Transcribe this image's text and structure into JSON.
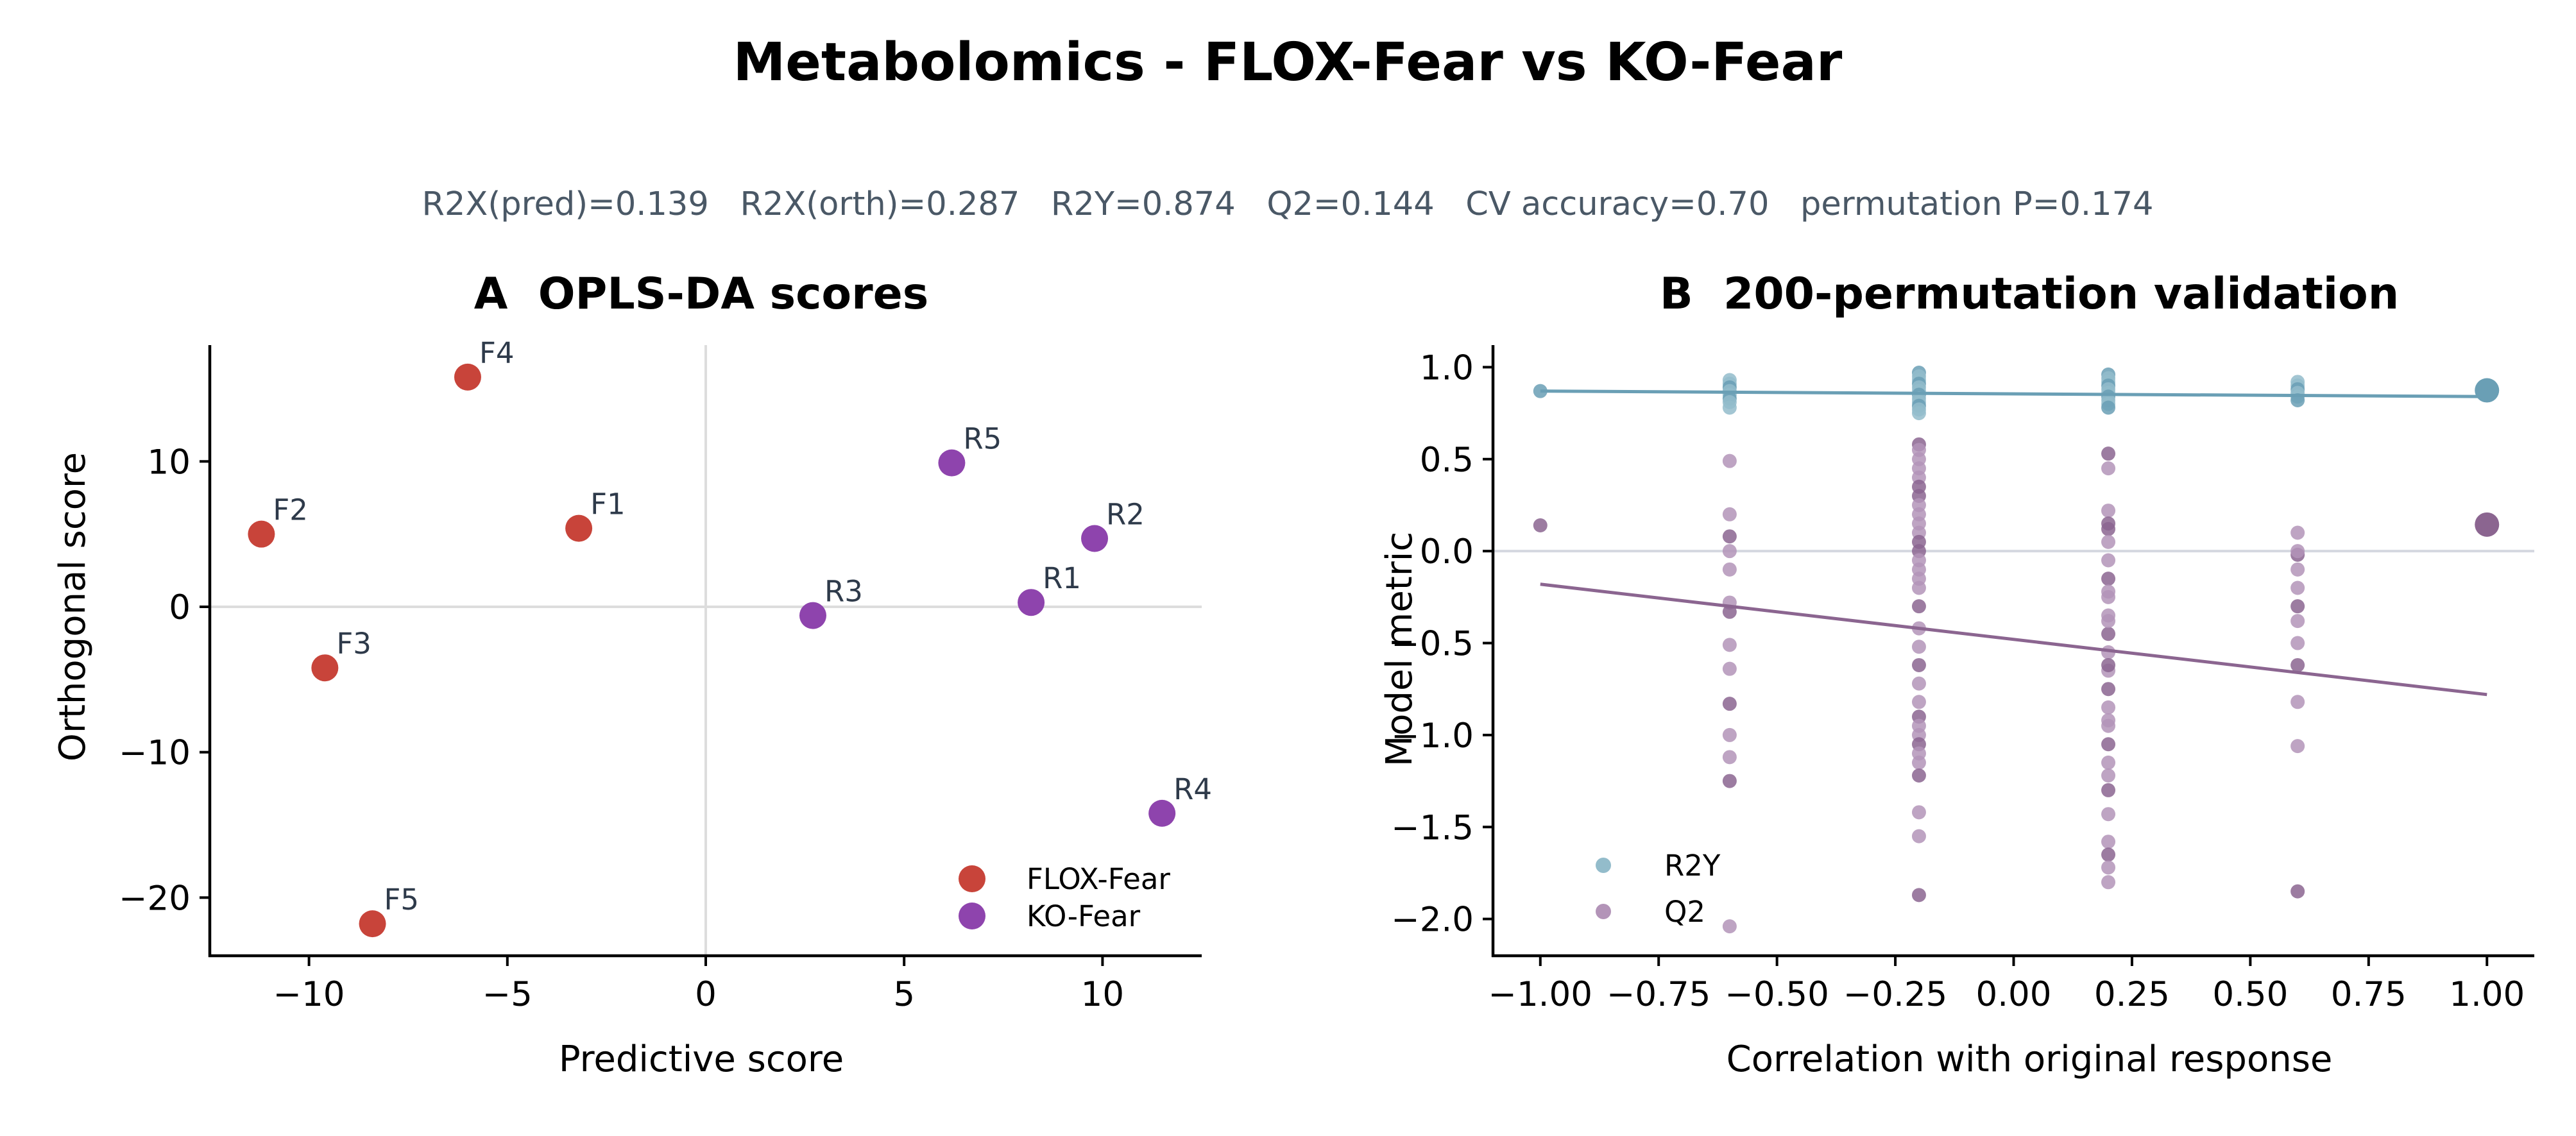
{
  "title": "Metabolomics - FLOX-Fear vs KO-Fear",
  "subtitle": "R2X(pred)=0.139   R2X(orth)=0.287   R2Y=0.874   Q2=0.144   CV accuracy=0.70   permutation P=0.174",
  "chart_data": [
    {
      "type": "scatter",
      "title": "A  OPLS-DA scores",
      "xlabel": "Predictive score",
      "ylabel": "Orthogonal score",
      "xlim": [
        -12.5,
        12.5
      ],
      "ylim": [
        -24,
        18
      ],
      "xticks": [
        -10,
        -5,
        0,
        5,
        10
      ],
      "xtick_labels": [
        "−10",
        "−5",
        "0",
        "5",
        "10"
      ],
      "yticks": [
        -20,
        -10,
        0,
        10
      ],
      "ytick_labels": [
        "−20",
        "−10",
        "0",
        "10"
      ],
      "grid": false,
      "reference_lines": {
        "x": 0,
        "y": 0
      },
      "legend_position": "bottom-right",
      "series": [
        {
          "name": "FLOX-Fear",
          "color": "#c8443a",
          "points": [
            {
              "label": "F1",
              "x": -3.2,
              "y": 5.4
            },
            {
              "label": "F2",
              "x": -11.2,
              "y": 5.0
            },
            {
              "label": "F3",
              "x": -9.6,
              "y": -4.2
            },
            {
              "label": "F4",
              "x": -6.0,
              "y": 15.8
            },
            {
              "label": "F5",
              "x": -8.4,
              "y": -21.8
            }
          ]
        },
        {
          "name": "KO-Fear",
          "color": "#8e44ad",
          "points": [
            {
              "label": "R1",
              "x": 8.2,
              "y": 0.3
            },
            {
              "label": "R2",
              "x": 9.8,
              "y": 4.7
            },
            {
              "label": "R3",
              "x": 2.7,
              "y": -0.6
            },
            {
              "label": "R4",
              "x": 11.5,
              "y": -14.2
            },
            {
              "label": "R5",
              "x": 6.2,
              "y": 9.9
            }
          ]
        }
      ]
    },
    {
      "type": "scatter",
      "title": "B  200-permutation validation",
      "xlabel": "Correlation with original response",
      "ylabel": "Model metric",
      "xlim": [
        -1.1,
        1.1
      ],
      "ylim": [
        -2.2,
        1.12
      ],
      "xticks": [
        -1.0,
        -0.75,
        -0.5,
        -0.25,
        0.0,
        0.25,
        0.5,
        0.75,
        1.0
      ],
      "xtick_labels": [
        "−1.00",
        "−0.75",
        "−0.50",
        "−0.25",
        "0.00",
        "0.25",
        "0.50",
        "0.75",
        "1.00"
      ],
      "yticks": [
        -2.0,
        -1.5,
        -1.0,
        -0.5,
        0.0,
        0.5,
        1.0
      ],
      "ytick_labels": [
        "−2.0",
        "−1.5",
        "−1.0",
        "−0.5",
        "0.0",
        "0.5",
        "1.0"
      ],
      "grid": false,
      "reference_lines": {
        "y": 0
      },
      "legend_position": "bottom-left",
      "series": [
        {
          "name": "R2Y",
          "color": "#6a9fb5",
          "x": [
            -1.0,
            -0.6,
            -0.6,
            -0.6,
            -0.6,
            -0.6,
            -0.6,
            -0.6,
            -0.6,
            -0.2,
            -0.2,
            -0.2,
            -0.2,
            -0.2,
            -0.2,
            -0.2,
            -0.2,
            -0.2,
            -0.2,
            -0.2,
            -0.2,
            0.2,
            0.2,
            0.2,
            0.2,
            0.2,
            0.2,
            0.2,
            0.2,
            0.2,
            0.2,
            0.6,
            0.6,
            0.6,
            0.6,
            0.6,
            0.6
          ],
          "y": [
            0.87,
            0.93,
            0.91,
            0.89,
            0.87,
            0.85,
            0.83,
            0.81,
            0.78,
            0.97,
            0.95,
            0.93,
            0.91,
            0.89,
            0.87,
            0.85,
            0.83,
            0.81,
            0.79,
            0.77,
            0.75,
            0.96,
            0.94,
            0.92,
            0.9,
            0.88,
            0.86,
            0.84,
            0.82,
            0.8,
            0.78,
            0.92,
            0.9,
            0.88,
            0.86,
            0.84,
            0.82
          ],
          "original": {
            "x": 1.0,
            "y": 0.874
          },
          "regression": {
            "x": [
              -1.0,
              1.0
            ],
            "y": [
              0.87,
              0.84
            ]
          }
        },
        {
          "name": "Q2",
          "color": "#8b6590",
          "x": [
            -1.0,
            -0.6,
            -0.6,
            -0.6,
            -0.6,
            -0.6,
            -0.6,
            -0.6,
            -0.6,
            -0.6,
            -0.6,
            -0.6,
            -0.6,
            -0.6,
            -0.6,
            -0.2,
            -0.2,
            -0.2,
            -0.2,
            -0.2,
            -0.2,
            -0.2,
            -0.2,
            -0.2,
            -0.2,
            -0.2,
            -0.2,
            -0.2,
            -0.2,
            -0.2,
            -0.2,
            -0.2,
            -0.2,
            -0.2,
            -0.2,
            -0.2,
            -0.2,
            -0.2,
            -0.2,
            -0.2,
            -0.2,
            -0.2,
            -0.2,
            -0.2,
            -0.2,
            -0.2,
            -0.2,
            -0.2,
            0.2,
            0.2,
            0.2,
            0.2,
            0.2,
            0.2,
            0.2,
            0.2,
            0.2,
            0.2,
            0.2,
            0.2,
            0.2,
            0.2,
            0.2,
            0.2,
            0.2,
            0.2,
            0.2,
            0.2,
            0.2,
            0.2,
            0.2,
            0.2,
            0.2,
            0.2,
            0.2,
            0.2,
            0.2,
            0.6,
            0.6,
            0.6,
            0.6,
            0.6,
            0.6,
            0.6,
            0.6,
            0.6,
            0.6,
            0.6,
            0.6
          ],
          "y": [
            0.14,
            0.49,
            0.2,
            0.08,
            -0.1,
            -0.28,
            -0.33,
            -0.51,
            -0.64,
            -0.83,
            -1.0,
            -1.12,
            -1.25,
            -2.04,
            0.0,
            0.58,
            0.5,
            0.4,
            0.3,
            0.2,
            0.1,
            0.0,
            -0.1,
            -0.2,
            -0.3,
            -0.42,
            -0.52,
            -0.62,
            -0.72,
            -0.82,
            -0.9,
            -0.95,
            -1.0,
            -1.05,
            -1.1,
            -1.15,
            -1.22,
            -1.42,
            -1.55,
            -1.87,
            0.55,
            0.45,
            0.35,
            0.25,
            0.15,
            0.05,
            -0.05,
            -0.15,
            0.53,
            0.45,
            0.22,
            0.12,
            0.05,
            -0.05,
            -0.15,
            -0.25,
            -0.35,
            -0.45,
            -0.55,
            -0.65,
            -0.75,
            -0.85,
            -0.95,
            -1.05,
            -1.15,
            -1.22,
            -1.3,
            -1.43,
            -1.58,
            -1.65,
            -1.72,
            -1.8,
            0.15,
            -0.22,
            -0.38,
            -0.62,
            -0.92,
            0.1,
            -0.02,
            -0.1,
            -0.2,
            -0.3,
            -0.38,
            -0.5,
            -0.62,
            -0.82,
            -1.06,
            -1.85,
            0.0
          ],
          "original": {
            "x": 1.0,
            "y": 0.144
          },
          "regression": {
            "x": [
              -1.0,
              1.0
            ],
            "y": [
              -0.18,
              -0.78
            ]
          }
        }
      ]
    }
  ]
}
